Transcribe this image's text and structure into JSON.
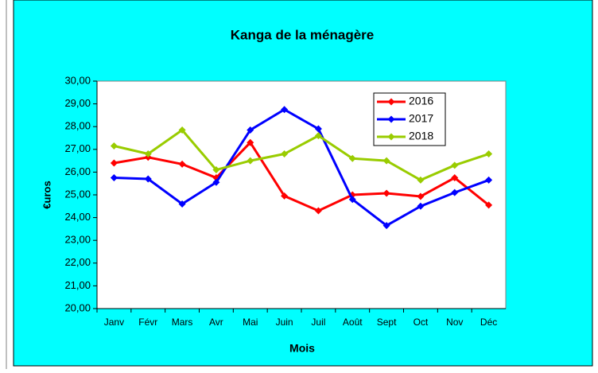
{
  "chart_data": {
    "type": "line",
    "title": "Kanga de la ménagère",
    "x_label": "Mois",
    "y_label": "€uros",
    "categories": [
      "Janv",
      "Févr",
      "Mars",
      "Avr",
      "Mai",
      "Juin",
      "Juil",
      "Août",
      "Sept",
      "Oct",
      "Nov",
      "Déc"
    ],
    "series": [
      {
        "name": "2016",
        "color": "#ff0000",
        "values": [
          26.4,
          26.65,
          26.35,
          25.75,
          27.3,
          24.95,
          24.3,
          25.0,
          25.07,
          24.93,
          25.75,
          24.55
        ]
      },
      {
        "name": "2017",
        "color": "#0000ff",
        "values": [
          25.75,
          25.7,
          24.6,
          25.55,
          27.85,
          28.75,
          27.9,
          24.8,
          23.65,
          24.5,
          25.1,
          25.65
        ]
      },
      {
        "name": "2018",
        "color": "#99cc00",
        "values": [
          27.15,
          26.8,
          27.85,
          26.1,
          26.5,
          26.8,
          27.6,
          26.6,
          26.5,
          25.65,
          26.3,
          26.8
        ]
      }
    ],
    "ylim": [
      20,
      30
    ],
    "yticks": [
      {
        "value": 20,
        "label": "20,00"
      },
      {
        "value": 21,
        "label": "21,00"
      },
      {
        "value": 22,
        "label": "22,00"
      },
      {
        "value": 23,
        "label": "23,00"
      },
      {
        "value": 24,
        "label": "24,00"
      },
      {
        "value": 25,
        "label": "25,00"
      },
      {
        "value": 26,
        "label": "26,00"
      },
      {
        "value": 27,
        "label": "27,00"
      },
      {
        "value": 28,
        "label": "28,00"
      },
      {
        "value": 29,
        "label": "29,00"
      },
      {
        "value": 30,
        "label": "30,00"
      }
    ],
    "grid": false,
    "legend": "upper-right"
  }
}
